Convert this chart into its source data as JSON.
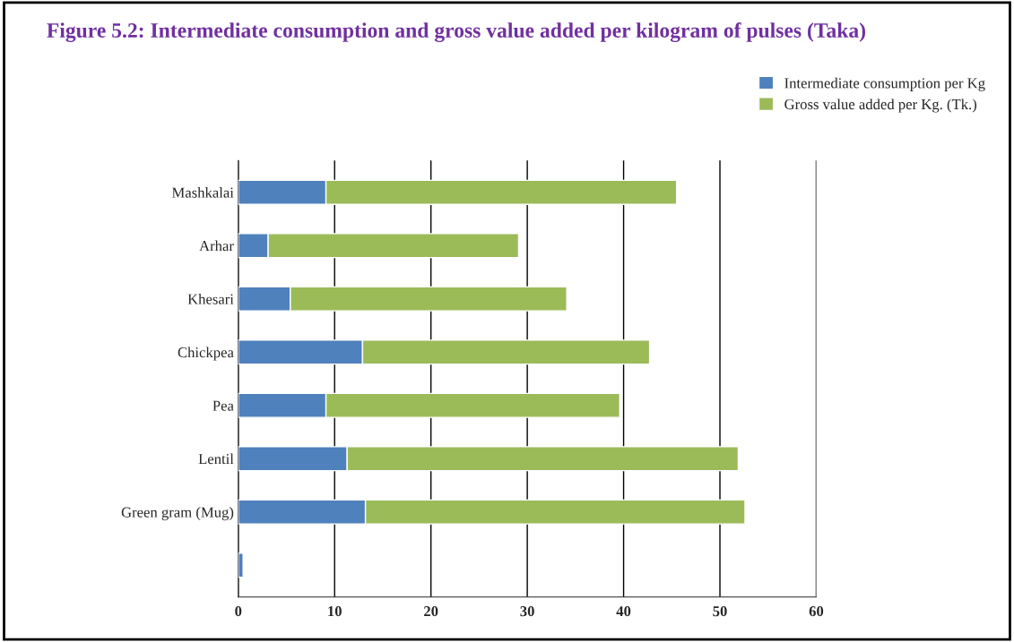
{
  "chart_data": {
    "type": "bar",
    "orientation": "horizontal",
    "stacked": true,
    "title": "Figure 5.2: Intermediate consumption and gross value added per kilogram of pulses (Taka)",
    "categories": [
      "Mashkalai",
      "Arhar",
      "Khesari",
      "Chickpea",
      "Pea",
      "Lentil",
      "Green gram (Mug)",
      null
    ],
    "series": [
      {
        "name": "Intermediate consumption per Kg",
        "color": "#4f81bd",
        "values": [
          9.1,
          3.1,
          5.4,
          12.9,
          9.1,
          11.3,
          13.2,
          0.5
        ]
      },
      {
        "name": "Gross value added per Kg. (Tk.)",
        "color": "#9bbb59",
        "values": [
          36.4,
          26.0,
          28.7,
          29.8,
          30.5,
          40.6,
          39.4,
          null
        ]
      }
    ],
    "xlim": [
      0,
      60
    ],
    "xticks": [
      0,
      10,
      20,
      30,
      40,
      50,
      60
    ],
    "grid": "x",
    "legend": "top right"
  }
}
